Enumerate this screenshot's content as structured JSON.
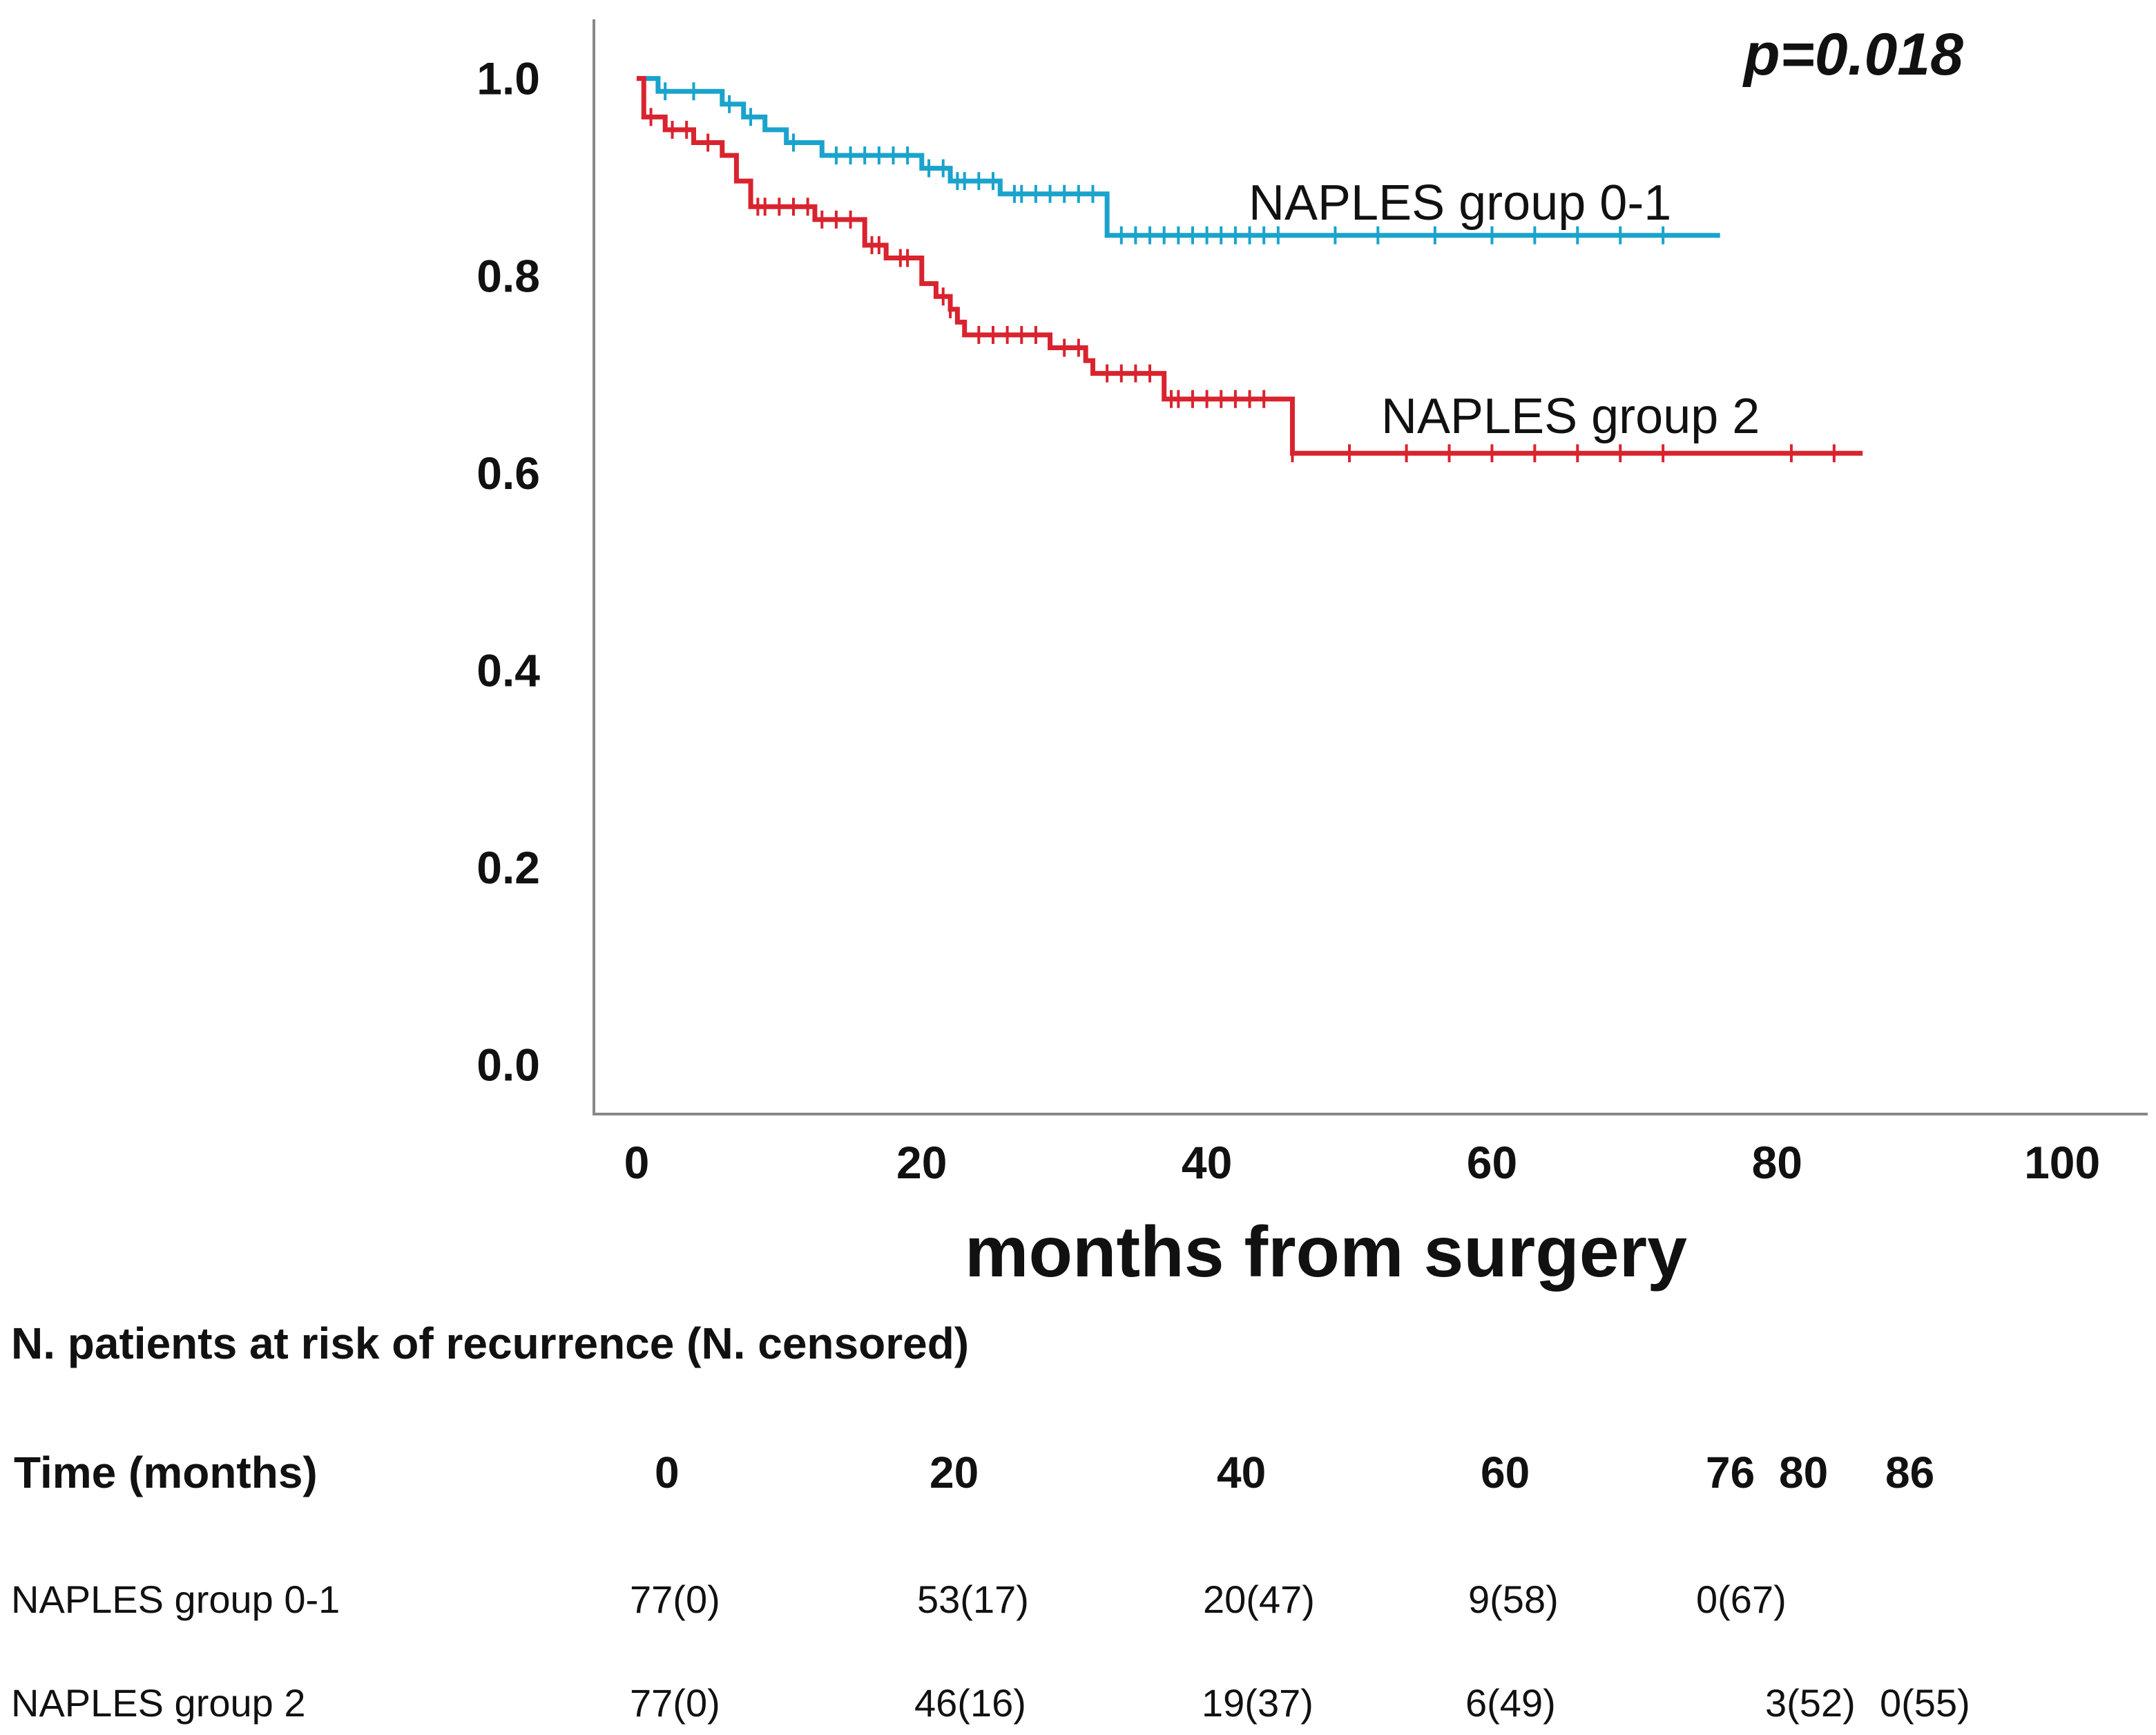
{
  "chart_data": {
    "type": "line",
    "step": true,
    "annotation": "p=0.018",
    "xlabel": "months from surgery",
    "ylabel": "",
    "xlim": [
      -3,
      106
    ],
    "ylim": [
      -0.05,
      1.06
    ],
    "xticks": [
      0,
      20,
      40,
      60,
      80,
      100
    ],
    "yticks": [
      "0.0",
      "0.2",
      "0.4",
      "0.6",
      "0.8",
      "1.0"
    ],
    "series": [
      {
        "name": "NAPLES group 0-1",
        "color": "#1aa3cc",
        "steps": [
          [
            0,
            1.0
          ],
          [
            1.5,
            0.987
          ],
          [
            6,
            0.974
          ],
          [
            7.5,
            0.961
          ],
          [
            9,
            0.948
          ],
          [
            10.5,
            0.935
          ],
          [
            13,
            0.922
          ],
          [
            20,
            0.909
          ],
          [
            22,
            0.896
          ],
          [
            25.5,
            0.883
          ],
          [
            33,
            0.841
          ],
          [
            76,
            0.841
          ]
        ],
        "censor_x": [
          2,
          4,
          6.5,
          8,
          11,
          14,
          15,
          16,
          17,
          18,
          19,
          20.5,
          21.5,
          22.5,
          23,
          24,
          25,
          26.5,
          27,
          28,
          29,
          30,
          31,
          32,
          34,
          35,
          36,
          37,
          38,
          39,
          40,
          41,
          42,
          43,
          44,
          45,
          49,
          52,
          56,
          60,
          63,
          66,
          69,
          72
        ]
      },
      {
        "name": "NAPLES group 2",
        "color": "#d9232e",
        "steps": [
          [
            0,
            1.0
          ],
          [
            0.5,
            0.961
          ],
          [
            2,
            0.948
          ],
          [
            4,
            0.935
          ],
          [
            6,
            0.922
          ],
          [
            7,
            0.896
          ],
          [
            8,
            0.87
          ],
          [
            12.5,
            0.857
          ],
          [
            16,
            0.831
          ],
          [
            17.5,
            0.818
          ],
          [
            20,
            0.792
          ],
          [
            21,
            0.779
          ],
          [
            22,
            0.766
          ],
          [
            22.5,
            0.753
          ],
          [
            23,
            0.74
          ],
          [
            29,
            0.727
          ],
          [
            31.5,
            0.714
          ],
          [
            32,
            0.701
          ],
          [
            37,
            0.675
          ],
          [
            46,
            0.62
          ],
          [
            86,
            0.62
          ]
        ],
        "censor_x": [
          1,
          2.5,
          3.5,
          5,
          8.5,
          9,
          10,
          11,
          12,
          13,
          14,
          15,
          16.5,
          17,
          18.5,
          19,
          21.5,
          22,
          24,
          25,
          26,
          27,
          28,
          30,
          31,
          33,
          34,
          35,
          36,
          37.5,
          38,
          39,
          40,
          41,
          42,
          43,
          44,
          46,
          50,
          54,
          57,
          60,
          63,
          66,
          69,
          72,
          81,
          84
        ]
      }
    ]
  },
  "risk_table": {
    "title": "N. patients at risk of recurrence (N. censored)",
    "time_label": "Time (months)",
    "times": [
      "0",
      "20",
      "40",
      "60",
      "76",
      "80",
      "86"
    ],
    "rows": [
      {
        "label": "NAPLES  group  0-1",
        "values": [
          "77(0)",
          "53(17)",
          "20(47)",
          "9(58)",
          "0(67)"
        ]
      },
      {
        "label": "NAPLES  group  2",
        "values": [
          "77(0)",
          "46(16)",
          "19(37)",
          "6(49)",
          "3(52)",
          "0(55)"
        ]
      }
    ]
  }
}
